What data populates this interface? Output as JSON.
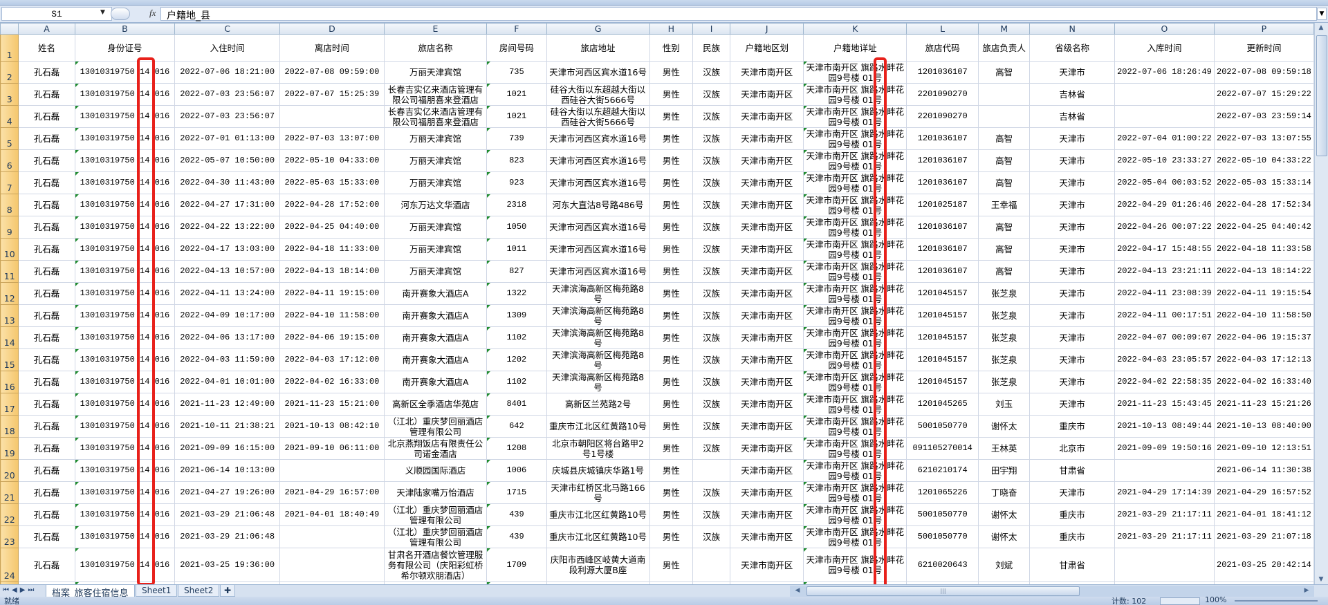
{
  "formula_bar": {
    "name_box": "S1",
    "fx_label": "fx",
    "formula": "户籍地_县"
  },
  "column_letters": [
    "A",
    "B",
    "C",
    "D",
    "E",
    "F",
    "G",
    "H",
    "I",
    "J",
    "K",
    "L",
    "M",
    "N",
    "O",
    "P"
  ],
  "header_row": [
    "姓名",
    "身份证号",
    "入住时间",
    "离店时间",
    "旅店名称",
    "房间号码",
    "旅店地址",
    "性别",
    "民族",
    "户籍地区划",
    "户籍地详址",
    "旅店代码",
    "旅店负责人",
    "省级名称",
    "入库时间",
    "更新时间"
  ],
  "rows": [
    [
      "孔石磊",
      "13010319750 14 016",
      "2022-07-06 18:21:00",
      "2022-07-08 09:59:00",
      "万丽天津宾馆",
      "735",
      "天津市河西区宾水道16号",
      "男性",
      "汉族",
      "天津市南开区",
      "天津市南开区 旗路水畔花园9号楼 01号",
      "1201036107",
      "高智",
      "天津市",
      "2022-07-06 18:26:49",
      "2022-07-08 09:59:18"
    ],
    [
      "孔石磊",
      "13010319750 14 016",
      "2022-07-03 23:56:07",
      "2022-07-07 15:25:39",
      "长春吉实亿来酒店管理有限公司福朋喜来登酒店",
      "1021",
      "硅谷大街以东超越大街以西硅谷大街5666号",
      "男性",
      "汉族",
      "天津市南开区",
      "天津市南开区 旗路水畔花园9号楼 01号",
      "2201090270",
      "",
      "吉林省",
      "",
      "2022-07-07 15:29:22"
    ],
    [
      "孔石磊",
      "13010319750 14 016",
      "2022-07-03 23:56:07",
      "",
      "长春吉实亿来酒店管理有限公司福朋喜来登酒店",
      "1021",
      "硅谷大街以东超越大街以西硅谷大街5666号",
      "男性",
      "汉族",
      "天津市南开区",
      "天津市南开区 旗路水畔花园9号楼 01号",
      "2201090270",
      "",
      "吉林省",
      "",
      "2022-07-03 23:59:14"
    ],
    [
      "孔石磊",
      "13010319750 14 016",
      "2022-07-01 01:13:00",
      "2022-07-03 13:07:00",
      "万丽天津宾馆",
      "739",
      "天津市河西区宾水道16号",
      "男性",
      "汉族",
      "天津市南开区",
      "天津市南开区 旗路水畔花园9号楼 01号",
      "1201036107",
      "高智",
      "天津市",
      "2022-07-04 01:00:22",
      "2022-07-03 13:07:55"
    ],
    [
      "孔石磊",
      "13010319750 14 016",
      "2022-05-07 10:50:00",
      "2022-05-10 04:33:00",
      "万丽天津宾馆",
      "823",
      "天津市河西区宾水道16号",
      "男性",
      "汉族",
      "天津市南开区",
      "天津市南开区 旗路水畔花园9号楼 01号",
      "1201036107",
      "高智",
      "天津市",
      "2022-05-10 23:33:27",
      "2022-05-10 04:33:22"
    ],
    [
      "孔石磊",
      "13010319750 14 016",
      "2022-04-30 11:43:00",
      "2022-05-03 15:33:00",
      "万丽天津宾馆",
      "923",
      "天津市河西区宾水道16号",
      "男性",
      "汉族",
      "天津市南开区",
      "天津市南开区 旗路水畔花园9号楼 01号",
      "1201036107",
      "高智",
      "天津市",
      "2022-05-04 00:03:52",
      "2022-05-03 15:33:14"
    ],
    [
      "孔石磊",
      "13010319750 14 016",
      "2022-04-27 17:31:00",
      "2022-04-28 17:52:00",
      "河东万达文华酒店",
      "2318",
      "河东大直沽8号路486号",
      "男性",
      "汉族",
      "天津市南开区",
      "天津市南开区 旗路水畔花园9号楼 01号",
      "1201025187",
      "王幸福",
      "天津市",
      "2022-04-29 01:26:46",
      "2022-04-28 17:52:34"
    ],
    [
      "孔石磊",
      "13010319750 14 016",
      "2022-04-22 13:22:00",
      "2022-04-25 04:40:00",
      "万丽天津宾馆",
      "1050",
      "天津市河西区宾水道16号",
      "男性",
      "汉族",
      "天津市南开区",
      "天津市南开区 旗路水畔花园9号楼 01号",
      "1201036107",
      "高智",
      "天津市",
      "2022-04-26 00:07:22",
      "2022-04-25 04:40:42"
    ],
    [
      "孔石磊",
      "13010319750 14 016",
      "2022-04-17 13:03:00",
      "2022-04-18 11:33:00",
      "万丽天津宾馆",
      "1011",
      "天津市河西区宾水道16号",
      "男性",
      "汉族",
      "天津市南开区",
      "天津市南开区 旗路水畔花园9号楼 01号",
      "1201036107",
      "高智",
      "天津市",
      "2022-04-17 15:48:55",
      "2022-04-18 11:33:58"
    ],
    [
      "孔石磊",
      "13010319750 14 016",
      "2022-04-13 10:57:00",
      "2022-04-13 18:14:00",
      "万丽天津宾馆",
      "827",
      "天津市河西区宾水道16号",
      "男性",
      "汉族",
      "天津市南开区",
      "天津市南开区 旗路水畔花园9号楼 01号",
      "1201036107",
      "高智",
      "天津市",
      "2022-04-13 23:21:11",
      "2022-04-13 18:14:22"
    ],
    [
      "孔石磊",
      "13010319750 14 016",
      "2022-04-11 13:24:00",
      "2022-04-11 19:15:00",
      "南开赛象大酒店A",
      "1322",
      "天津滨海高新区梅苑路8号",
      "男性",
      "汉族",
      "天津市南开区",
      "天津市南开区 旗路水畔花园9号楼 01号",
      "1201045157",
      "张芝泉",
      "天津市",
      "2022-04-11 23:08:39",
      "2022-04-11 19:15:54"
    ],
    [
      "孔石磊",
      "13010319750 14 016",
      "2022-04-09 10:17:00",
      "2022-04-10 11:58:00",
      "南开赛象大酒店A",
      "1309",
      "天津滨海高新区梅苑路8号",
      "男性",
      "汉族",
      "天津市南开区",
      "天津市南开区 旗路水畔花园9号楼 01号",
      "1201045157",
      "张芝泉",
      "天津市",
      "2022-04-11 00:17:51",
      "2022-04-10 11:58:50"
    ],
    [
      "孔石磊",
      "13010319750 14 016",
      "2022-04-06 13:17:00",
      "2022-04-06 19:15:00",
      "南开赛象大酒店A",
      "1102",
      "天津滨海高新区梅苑路8号",
      "男性",
      "汉族",
      "天津市南开区",
      "天津市南开区 旗路水畔花园9号楼 01号",
      "1201045157",
      "张芝泉",
      "天津市",
      "2022-04-07 00:09:07",
      "2022-04-06 19:15:37"
    ],
    [
      "孔石磊",
      "13010319750 14 016",
      "2022-04-03 11:59:00",
      "2022-04-03 17:12:00",
      "南开赛象大酒店A",
      "1202",
      "天津滨海高新区梅苑路8号",
      "男性",
      "汉族",
      "天津市南开区",
      "天津市南开区 旗路水畔花园9号楼 01号",
      "1201045157",
      "张芝泉",
      "天津市",
      "2022-04-03 23:05:57",
      "2022-04-03 17:12:13"
    ],
    [
      "孔石磊",
      "13010319750 14 016",
      "2022-04-01 10:01:00",
      "2022-04-02 16:33:00",
      "南开赛象大酒店A",
      "1102",
      "天津滨海高新区梅苑路8号",
      "男性",
      "汉族",
      "天津市南开区",
      "天津市南开区 旗路水畔花园9号楼 01号",
      "1201045157",
      "张芝泉",
      "天津市",
      "2022-04-02 22:58:35",
      "2022-04-02 16:33:40"
    ],
    [
      "孔石磊",
      "13010319750 14 016",
      "2021-11-23 12:49:00",
      "2021-11-23 15:21:00",
      "高新区全季酒店华苑店",
      "8401",
      "高新区兰苑路2号",
      "男性",
      "汉族",
      "天津市南开区",
      "天津市南开区 旗路水畔花园9号楼 01号",
      "1201045265",
      "刘玉",
      "天津市",
      "2021-11-23 15:43:45",
      "2021-11-23 15:21:26"
    ],
    [
      "孔石磊",
      "13010319750 14 016",
      "2021-10-11 21:38:21",
      "2021-10-13 08:42:10",
      "（江北）重庆梦回丽酒店管理有限公司",
      "642",
      "重庆市江北区红黄路10号",
      "男性",
      "汉族",
      "天津市南开区",
      "天津市南开区 旗路水畔花园9号楼 01号",
      "5001050770",
      "谢怀太",
      "重庆市",
      "2021-10-13 08:49:44",
      "2021-10-13 08:40:00"
    ],
    [
      "孔石磊",
      "13010319750 14 016",
      "2021-09-09 16:15:00",
      "2021-09-10 06:11:00",
      "北京燕翔饭店有限责任公司诺金酒店",
      "1208",
      "北京市朝阳区将台路甲2号1号楼",
      "男性",
      "汉族",
      "天津市南开区",
      "天津市南开区 旗路水畔花园9号楼 01号",
      "091105270014",
      "王林英",
      "北京市",
      "2021-09-09 19:50:16",
      "2021-09-10 12:13:51"
    ],
    [
      "孔石磊",
      "13010319750 14 016",
      "2021-06-14 10:13:00",
      "",
      "义顺园国际酒店",
      "1006",
      "庆城县庆城镇庆华路1号",
      "男性",
      "",
      "天津市南开区",
      "天津市南开区 旗路水畔花园9号楼 01号",
      "6210210174",
      "田宇翔",
      "甘肃省",
      "",
      "2021-06-14 11:30:38"
    ],
    [
      "孔石磊",
      "13010319750 14 016",
      "2021-04-27 19:26:00",
      "2021-04-29 16:57:00",
      "天津陆家嘴万怡酒店",
      "1715",
      "天津市红桥区北马路166号",
      "男性",
      "汉族",
      "天津市南开区",
      "天津市南开区 旗路水畔花园9号楼 01号",
      "1201065226",
      "丁晓奋",
      "天津市",
      "2021-04-29 17:14:39",
      "2021-04-29 16:57:52"
    ],
    [
      "孔石磊",
      "13010319750 14 016",
      "2021-03-29 21:06:48",
      "2021-04-01 18:40:49",
      "（江北）重庆梦回丽酒店管理有限公司",
      "439",
      "重庆市江北区红黄路10号",
      "男性",
      "汉族",
      "天津市南开区",
      "天津市南开区 旗路水畔花园9号楼 01号",
      "5001050770",
      "谢怀太",
      "重庆市",
      "2021-03-29 21:17:11",
      "2021-04-01 18:41:12"
    ],
    [
      "孔石磊",
      "13010319750 14 016",
      "2021-03-29 21:06:48",
      "",
      "（江北）重庆梦回丽酒店管理有限公司",
      "439",
      "重庆市江北区红黄路10号",
      "男性",
      "汉族",
      "天津市南开区",
      "天津市南开区 旗路水畔花园9号楼 01号",
      "5001050770",
      "谢怀太",
      "重庆市",
      "2021-03-29 21:17:11",
      "2021-03-29 21:07:18"
    ],
    [
      "孔石磊",
      "13010319750 14 016",
      "2021-03-25 19:36:00",
      "",
      "甘肃名开酒店餐饮管理服务有限公司（庆阳彩虹桥希尔顿欢朋酒店）",
      "1709",
      "庆阳市西峰区岐黄大道南段利源大厦B座",
      "男性",
      "",
      "天津市南开区",
      "天津市南开区 旗路水畔花园9号楼 01号",
      "6210020643",
      "刘斌",
      "甘肃省",
      "",
      "2021-03-25 20:42:14"
    ]
  ],
  "sheet_tabs": [
    "档案_旅客住宿信息",
    "Sheet1",
    "Sheet2"
  ],
  "active_sheet": "档案_旅客住宿信息",
  "status": {
    "ready": "就绪",
    "count": "计数: 102",
    "zoom": "100%"
  },
  "colors": {
    "highlight_box": "#e8211b",
    "text_number_marker": "#1f8c2f",
    "selected_row_header": "#f5c76d"
  }
}
